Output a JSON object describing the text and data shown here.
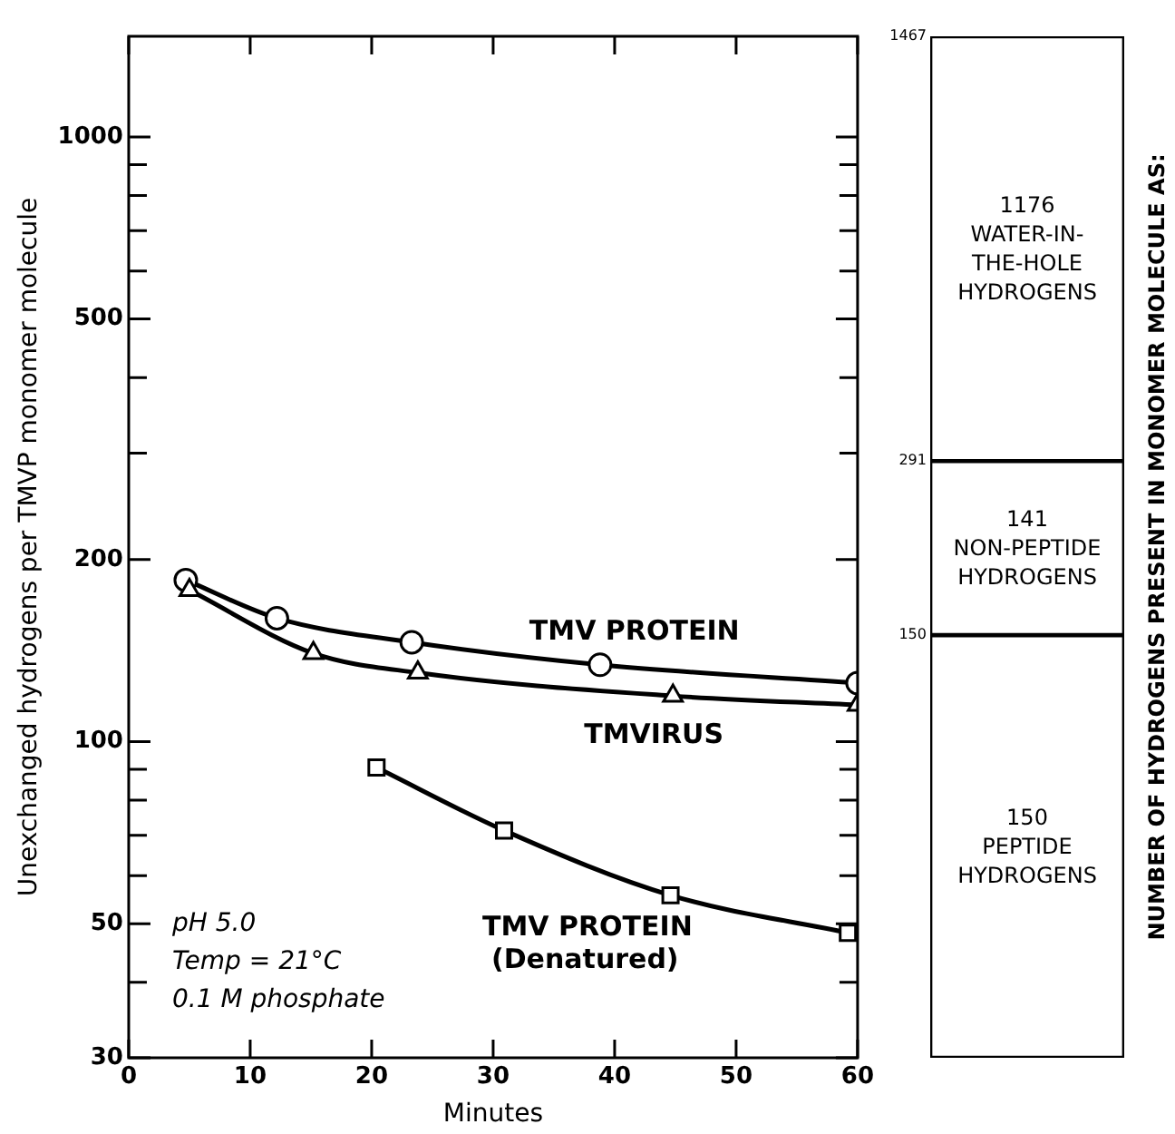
{
  "chart_data": [
    {
      "type": "line",
      "xlabel": "Minutes",
      "ylabel": "Unexchanged hydrogens per TMVP monomer molecule",
      "log": true,
      "grid": false,
      "legend": false,
      "line_style": "solid",
      "xlim": [
        0,
        60
      ],
      "xticks": [
        0,
        10,
        20,
        30,
        40,
        50,
        60
      ],
      "ylim": [
        30,
        1467
      ],
      "yticks": [
        30,
        {
          "value": 40,
          "label": null
        },
        50,
        {
          "value": 60,
          "label": null
        },
        {
          "value": 70,
          "label": null
        },
        {
          "value": 80,
          "label": null
        },
        {
          "value": 90,
          "label": null
        },
        100,
        200,
        {
          "value": 300,
          "label": null
        },
        {
          "value": 400,
          "label": null
        },
        500,
        {
          "value": 600,
          "label": null
        },
        {
          "value": 700,
          "label": null
        },
        {
          "value": 800,
          "label": null
        },
        {
          "value": 900,
          "label": null
        },
        1000
      ],
      "series": [
        {
          "name": "TMV PROTEIN",
          "color": "#000000",
          "marker": "circle",
          "x": [
            4.7,
            12.2,
            23.3,
            38.8,
            60
          ],
          "values": [
            185,
            160,
            146,
            134,
            125
          ]
        },
        {
          "name": "TMVIRUS",
          "color": "#000000",
          "marker": "triangle",
          "x": [
            5,
            15.2,
            23.8,
            44.8,
            60
          ],
          "values": [
            178,
            140,
            130,
            119,
            115
          ]
        },
        {
          "name": "TMV PROTEIN (Denatured)",
          "color": "#000000",
          "marker": "square",
          "x": [
            20.4,
            30.9,
            44.6,
            59.2
          ],
          "values": [
            90.6,
            71.3,
            55.7,
            48.3
          ]
        }
      ],
      "annotations": [
        "pH 5.0",
        "Temp = 21°C",
        "0.1 M phosphate"
      ]
    },
    {
      "type": "bar",
      "stacked": true,
      "log": true,
      "ylabel": "NUMBER OF HYDROGENS PRESENT IN MONOMER MOLECULE AS:",
      "categories": [
        null
      ],
      "ylim": [
        30,
        1467
      ],
      "yticks": [
        150,
        291,
        1467
      ],
      "tick_labels": "y",
      "data_labels": true,
      "grid": false,
      "legend": false,
      "series": [
        {
          "name": "PEPTIDE HYDROGENS",
          "color": "#ffffff",
          "values": [
            150
          ]
        },
        {
          "name": "NON-PEPTIDE HYDROGENS",
          "color": "#ffffff",
          "values": [
            141
          ]
        },
        {
          "name": "WATER-IN-THE-HOLE HYDROGENS",
          "color": "#ffffff",
          "values": [
            1176
          ]
        }
      ]
    }
  ]
}
